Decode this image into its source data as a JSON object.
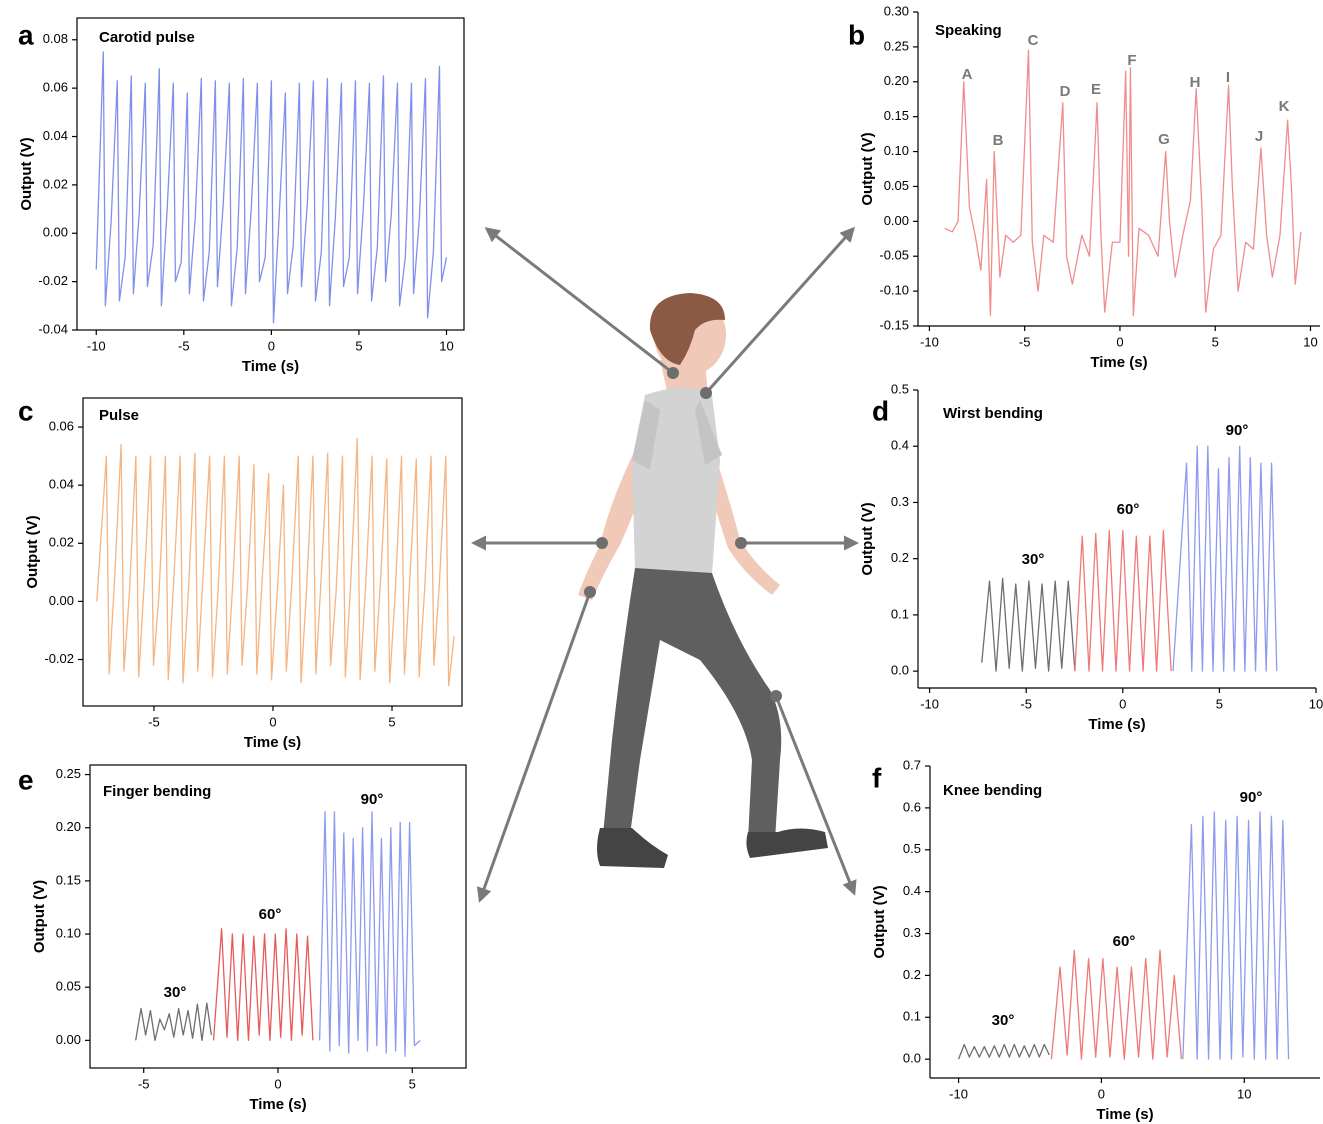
{
  "chart_data": [
    {
      "type": "line",
      "panel": "a",
      "title": "Carotid pulse",
      "xlabel": "Time (s)",
      "ylabel": "Output (V)",
      "frame": true,
      "xlim": [
        -11.1,
        11
      ],
      "ylim": [
        -0.04,
        0.089
      ],
      "xticks": [
        -10,
        -5,
        0,
        5,
        10
      ],
      "yticks": [
        -0.04,
        -0.02,
        {
          "value": 0,
          "label": "0.00"
        },
        0.02,
        0.04,
        0.06,
        0.08
      ],
      "annotations": [],
      "series": [
        {
          "color": "#7f8fea",
          "x": [
            -10,
            -9.6,
            -9.48,
            -9.15,
            -8.8,
            -8.68,
            -8.35,
            -8,
            -7.88,
            -7.55,
            -7.2,
            -7.08,
            -6.75,
            -6.4,
            -6.28,
            -5.95,
            -5.6,
            -5.48,
            -5.15,
            -4.8,
            -4.68,
            -4.35,
            -4,
            -3.88,
            -3.55,
            -3.2,
            -3.08,
            -2.75,
            -2.4,
            -2.28,
            -1.95,
            -1.6,
            -1.48,
            -1.15,
            -0.8,
            -0.68,
            -0.35,
            0,
            0.12,
            0.45,
            0.8,
            0.92,
            1.25,
            1.6,
            1.72,
            2.05,
            2.4,
            2.52,
            2.85,
            3.2,
            3.32,
            3.65,
            4,
            4.12,
            4.45,
            4.8,
            4.92,
            5.25,
            5.6,
            5.72,
            6.05,
            6.4,
            6.52,
            6.85,
            7.2,
            7.32,
            7.65,
            8,
            8.12,
            8.45,
            8.8,
            8.92,
            9.25,
            9.6,
            9.72,
            10
          ],
          "values": [
            -0.015,
            0.075,
            -0.03,
            0.005,
            0.063,
            -0.028,
            -0.01,
            0.065,
            -0.025,
            0.008,
            0.062,
            -0.022,
            -0.005,
            0.068,
            -0.03,
            0.01,
            0.062,
            -0.02,
            -0.012,
            0.058,
            -0.025,
            0.006,
            0.064,
            -0.028,
            -0.008,
            0.063,
            -0.022,
            0.012,
            0.062,
            -0.03,
            -0.006,
            0.064,
            -0.025,
            0.01,
            0.062,
            -0.02,
            -0.01,
            0.063,
            -0.037,
            0.008,
            0.058,
            -0.025,
            -0.005,
            0.062,
            -0.022,
            0.012,
            0.063,
            -0.028,
            -0.008,
            0.064,
            -0.03,
            0.006,
            0.062,
            -0.022,
            -0.01,
            0.063,
            -0.025,
            0.01,
            0.062,
            -0.028,
            -0.006,
            0.065,
            -0.02,
            0.008,
            0.062,
            -0.03,
            -0.01,
            0.062,
            -0.025,
            0.006,
            0.064,
            -0.035,
            -0.008,
            0.069,
            -0.02,
            -0.01
          ]
        }
      ]
    },
    {
      "type": "line",
      "panel": "b",
      "title": "Speaking",
      "xlabel": "Time (s)",
      "ylabel": "Output (V)",
      "frame": false,
      "xlim": [
        -10.6,
        10.5
      ],
      "ylim": [
        -0.15,
        0.3
      ],
      "xticks": [
        -10,
        -5,
        0,
        5,
        10
      ],
      "yticks": [
        -0.15,
        {
          "value": -0.1,
          "label": "-0.10"
        },
        -0.05,
        {
          "value": 0,
          "label": "0.00"
        },
        0.05,
        {
          "value": 0.1,
          "label": "0.10"
        },
        0.15,
        {
          "value": 0.2,
          "label": "0.20"
        },
        0.25,
        {
          "value": 0.3,
          "label": "0.30"
        }
      ],
      "annotations": [
        "A",
        "B",
        "C",
        "D",
        "E",
        "F",
        "G",
        "H",
        "I",
        "J",
        "K"
      ],
      "series": [
        {
          "color": "#f08c8c",
          "x": [
            -9.2,
            -8.8,
            -8.5,
            -8.2,
            -7.9,
            -7.6,
            -7.3,
            -7.0,
            -6.8,
            -6.6,
            -6.3,
            -6.0,
            -5.6,
            -5.2,
            -4.8,
            -4.6,
            -4.3,
            -4.0,
            -3.5,
            -3.0,
            -2.8,
            -2.5,
            -2.0,
            -1.6,
            -1.2,
            -1.0,
            -0.8,
            -0.4,
            0.0,
            0.3,
            0.45,
            0.55,
            0.7,
            1.0,
            1.5,
            2.0,
            2.4,
            2.6,
            2.9,
            3.3,
            3.7,
            4.0,
            4.3,
            4.5,
            4.9,
            5.3,
            5.7,
            5.9,
            6.2,
            6.6,
            7.0,
            7.4,
            7.7,
            8.0,
            8.4,
            8.8,
            9.0,
            9.2,
            9.5
          ],
          "values": [
            -0.01,
            -0.015,
            0.0,
            0.2,
            0.02,
            -0.02,
            -0.07,
            0.06,
            -0.135,
            0.1,
            -0.08,
            -0.02,
            -0.03,
            -0.02,
            0.245,
            -0.03,
            -0.1,
            -0.02,
            -0.03,
            0.17,
            -0.05,
            -0.09,
            -0.02,
            -0.05,
            0.17,
            -0.02,
            -0.13,
            -0.03,
            -0.03,
            0.215,
            -0.05,
            0.22,
            -0.135,
            -0.01,
            -0.02,
            -0.05,
            0.1,
            0.0,
            -0.08,
            -0.02,
            0.03,
            0.19,
            0.02,
            -0.13,
            -0.04,
            -0.02,
            0.195,
            0.05,
            -0.1,
            -0.03,
            -0.04,
            0.105,
            -0.02,
            -0.08,
            -0.02,
            0.145,
            0.05,
            -0.09,
            -0.015
          ]
        }
      ]
    },
    {
      "type": "line",
      "panel": "c",
      "title": "Pulse",
      "xlabel": "Time (s)",
      "ylabel": "Output (V)",
      "frame": true,
      "xlim": [
        -7.98,
        7.94
      ],
      "ylim": [
        -0.036,
        0.07
      ],
      "xticks": [
        -5,
        0,
        5
      ],
      "yticks": [
        -0.02,
        {
          "value": 0,
          "label": "0.00"
        },
        0.02,
        0.04,
        0.06
      ],
      "annotations": [],
      "series": [
        {
          "color": "#f5b482",
          "x": [
            -7.4,
            -7,
            -6.88,
            -6.65,
            -6.38,
            -6.26,
            -6.03,
            -5.76,
            -5.64,
            -5.41,
            -5.14,
            -5.02,
            -4.79,
            -4.52,
            -4.4,
            -4.17,
            -3.9,
            -3.78,
            -3.55,
            -3.28,
            -3.16,
            -2.93,
            -2.66,
            -2.54,
            -2.31,
            -2.04,
            -1.92,
            -1.69,
            -1.42,
            -1.3,
            -1.07,
            -0.8,
            -0.68,
            -0.45,
            -0.18,
            -0.06,
            0.17,
            0.44,
            0.56,
            0.79,
            1.06,
            1.18,
            1.41,
            1.68,
            1.8,
            2.03,
            2.3,
            2.42,
            2.65,
            2.92,
            3.04,
            3.27,
            3.54,
            3.66,
            3.89,
            4.16,
            4.28,
            4.51,
            4.78,
            4.9,
            5.13,
            5.4,
            5.52,
            5.75,
            6.02,
            6.14,
            6.37,
            6.64,
            6.76,
            6.99,
            7.26,
            7.38,
            7.61
          ],
          "values": [
            0.0,
            0.05,
            -0.025,
            0.008,
            0.054,
            -0.024,
            0.003,
            0.05,
            -0.026,
            0.006,
            0.05,
            -0.022,
            0.002,
            0.05,
            -0.027,
            0.007,
            0.05,
            -0.028,
            0.004,
            0.051,
            -0.024,
            0.01,
            0.05,
            -0.026,
            0.003,
            0.05,
            -0.025,
            0.006,
            0.05,
            -0.022,
            0.005,
            0.047,
            -0.025,
            0.008,
            0.044,
            -0.027,
            0.002,
            0.04,
            -0.024,
            0.006,
            0.05,
            -0.028,
            0.004,
            0.05,
            -0.025,
            0.009,
            0.051,
            -0.022,
            0.003,
            0.05,
            -0.026,
            0.007,
            0.056,
            -0.027,
            0.005,
            0.05,
            -0.024,
            0.006,
            0.049,
            -0.028,
            0.002,
            0.05,
            -0.025,
            0.008,
            0.049,
            -0.026,
            0.004,
            0.05,
            -0.022,
            0.006,
            0.05,
            -0.029,
            -0.012
          ]
        }
      ]
    },
    {
      "type": "line",
      "panel": "d",
      "title": "Wirst bending",
      "xlabel": "Time (s)",
      "ylabel": "Output (V)",
      "frame": false,
      "xlim": [
        -10.6,
        10
      ],
      "ylim": [
        -0.03,
        0.5
      ],
      "xticks": [
        -10,
        -5,
        0,
        5,
        10
      ],
      "yticks": [
        {
          "value": 0,
          "label": "0.0"
        },
        0.1,
        0.2,
        0.3,
        0.4,
        0.5
      ],
      "annotations": [
        "30°",
        "60°",
        "90°"
      ],
      "series": [
        {
          "color": "#6e6e6e",
          "x": [
            -7.3,
            -6.9,
            -6.56,
            -6.22,
            -5.88,
            -5.54,
            -5.2,
            -4.86,
            -4.52,
            -4.18,
            -3.84,
            -3.5,
            -3.16,
            -2.82,
            -2.48
          ],
          "values": [
            0.015,
            0.16,
            0.0,
            0.165,
            0.005,
            0.155,
            0.0,
            0.16,
            0.005,
            0.155,
            0.0,
            0.16,
            0.005,
            0.16,
            0.0
          ]
        },
        {
          "color": "#f07878",
          "x": [
            -2.48,
            -2.1,
            -1.75,
            -1.4,
            -1.05,
            -0.7,
            -0.35,
            0.0,
            0.35,
            0.7,
            1.05,
            1.4,
            1.75,
            2.1,
            2.5
          ],
          "values": [
            0.0,
            0.24,
            0.0,
            0.245,
            0.0,
            0.25,
            0.0,
            0.25,
            0.0,
            0.24,
            0.0,
            0.24,
            0.0,
            0.25,
            0.0
          ]
        },
        {
          "color": "#8d9bef",
          "x": [
            2.6,
            3.3,
            3.57,
            3.85,
            4.12,
            4.4,
            4.67,
            4.95,
            5.22,
            5.5,
            5.77,
            6.05,
            6.32,
            6.6,
            6.87,
            7.15,
            7.42,
            7.7,
            7.97
          ],
          "values": [
            0.0,
            0.37,
            0.0,
            0.4,
            0.0,
            0.4,
            0.0,
            0.36,
            0.0,
            0.38,
            0.0,
            0.4,
            0.0,
            0.38,
            0.0,
            0.37,
            0.0,
            0.37,
            0.0
          ]
        }
      ]
    },
    {
      "type": "line",
      "panel": "e",
      "title": "Finger bending",
      "xlabel": "Time (s)",
      "ylabel": "Output (V)",
      "frame": true,
      "xlim": [
        -7,
        7
      ],
      "ylim": [
        -0.026,
        0.259
      ],
      "xticks": [
        -5,
        0,
        5
      ],
      "yticks": [
        {
          "value": 0,
          "label": "0.00"
        },
        0.05,
        {
          "value": 0.1,
          "label": "0.10"
        },
        0.15,
        {
          "value": 0.2,
          "label": "0.20"
        },
        0.25
      ],
      "annotations": [
        "30°",
        "60°",
        "90°"
      ],
      "series": [
        {
          "color": "#6e6e6e",
          "x": [
            -5.3,
            -5.1,
            -4.93,
            -4.75,
            -4.58,
            -4.4,
            -4.23,
            -4.05,
            -3.88,
            -3.7,
            -3.53,
            -3.35,
            -3.18,
            -3.0,
            -2.83,
            -2.65,
            -2.48
          ],
          "values": [
            0.0,
            0.03,
            0.005,
            0.028,
            0.0,
            0.02,
            0.01,
            0.025,
            0.003,
            0.03,
            0.005,
            0.028,
            0.002,
            0.034,
            0.0,
            0.035,
            0.005
          ]
        },
        {
          "color": "#e85a5a",
          "x": [
            -2.4,
            -2.1,
            -1.9,
            -1.7,
            -1.5,
            -1.3,
            -1.1,
            -0.9,
            -0.7,
            -0.5,
            -0.3,
            -0.1,
            0.1,
            0.3,
            0.5,
            0.7,
            0.9,
            1.1,
            1.3
          ],
          "values": [
            0.0,
            0.105,
            0.003,
            0.1,
            0.0,
            0.1,
            0.0,
            0.098,
            0.005,
            0.1,
            0.0,
            0.1,
            0.003,
            0.105,
            0.0,
            0.1,
            0.005,
            0.098,
            0.0
          ]
        },
        {
          "color": "#8d9bef",
          "x": [
            1.55,
            1.75,
            1.93,
            2.1,
            2.28,
            2.45,
            2.63,
            2.8,
            2.98,
            3.15,
            3.33,
            3.5,
            3.68,
            3.85,
            4.03,
            4.2,
            4.38,
            4.55,
            4.73,
            4.9,
            5.08,
            5.3
          ],
          "values": [
            0.0,
            0.215,
            -0.01,
            0.215,
            -0.005,
            0.195,
            -0.012,
            0.19,
            0.0,
            0.2,
            -0.01,
            0.215,
            -0.005,
            0.19,
            -0.012,
            0.2,
            -0.01,
            0.205,
            -0.015,
            0.205,
            -0.005,
            0.0
          ]
        }
      ]
    },
    {
      "type": "line",
      "panel": "f",
      "title": "Knee bending",
      "xlabel": "Time (s)",
      "ylabel": "Output (V)",
      "frame": false,
      "xlim": [
        -12,
        15.3
      ],
      "ylim": [
        -0.045,
        0.7
      ],
      "xticks": [
        -10,
        0,
        10
      ],
      "yticks": [
        {
          "value": 0,
          "label": "0.0"
        },
        0.1,
        0.2,
        0.3,
        0.4,
        0.5,
        0.6,
        0.7
      ],
      "annotations": [
        "30°",
        "60°",
        "90°"
      ],
      "series": [
        {
          "color": "#6e6e6e",
          "x": [
            -10,
            -9.6,
            -9.25,
            -8.9,
            -8.55,
            -8.2,
            -7.85,
            -7.5,
            -7.15,
            -6.8,
            -6.45,
            -6.1,
            -5.75,
            -5.4,
            -5.05,
            -4.7,
            -4.35,
            -4.0,
            -3.65
          ],
          "values": [
            0.0,
            0.035,
            0.005,
            0.03,
            0.005,
            0.03,
            0.005,
            0.032,
            0.005,
            0.035,
            0.005,
            0.035,
            0.005,
            0.032,
            0.005,
            0.035,
            0.005,
            0.035,
            0.01
          ]
        },
        {
          "color": "#f07878",
          "x": [
            -3.5,
            -2.9,
            -2.4,
            -1.9,
            -1.4,
            -0.9,
            -0.4,
            0.1,
            0.6,
            1.1,
            1.6,
            2.1,
            2.6,
            3.1,
            3.6,
            4.1,
            4.6,
            5.1,
            5.6
          ],
          "values": [
            0.0,
            0.22,
            0.01,
            0.26,
            0.0,
            0.24,
            0.005,
            0.24,
            0.005,
            0.22,
            0.0,
            0.22,
            0.005,
            0.24,
            0.0,
            0.26,
            0.005,
            0.2,
            0.0
          ]
        },
        {
          "color": "#8d9bef",
          "x": [
            5.7,
            6.3,
            6.7,
            7.1,
            7.5,
            7.9,
            8.3,
            8.7,
            9.1,
            9.5,
            9.9,
            10.3,
            10.7,
            11.1,
            11.5,
            11.9,
            12.3,
            12.7,
            13.1
          ],
          "values": [
            0.0,
            0.56,
            0.0,
            0.58,
            0.0,
            0.59,
            0.0,
            0.57,
            0.0,
            0.58,
            0.005,
            0.57,
            0.0,
            0.59,
            0.0,
            0.58,
            0.0,
            0.57,
            0.0
          ]
        }
      ]
    }
  ]
}
